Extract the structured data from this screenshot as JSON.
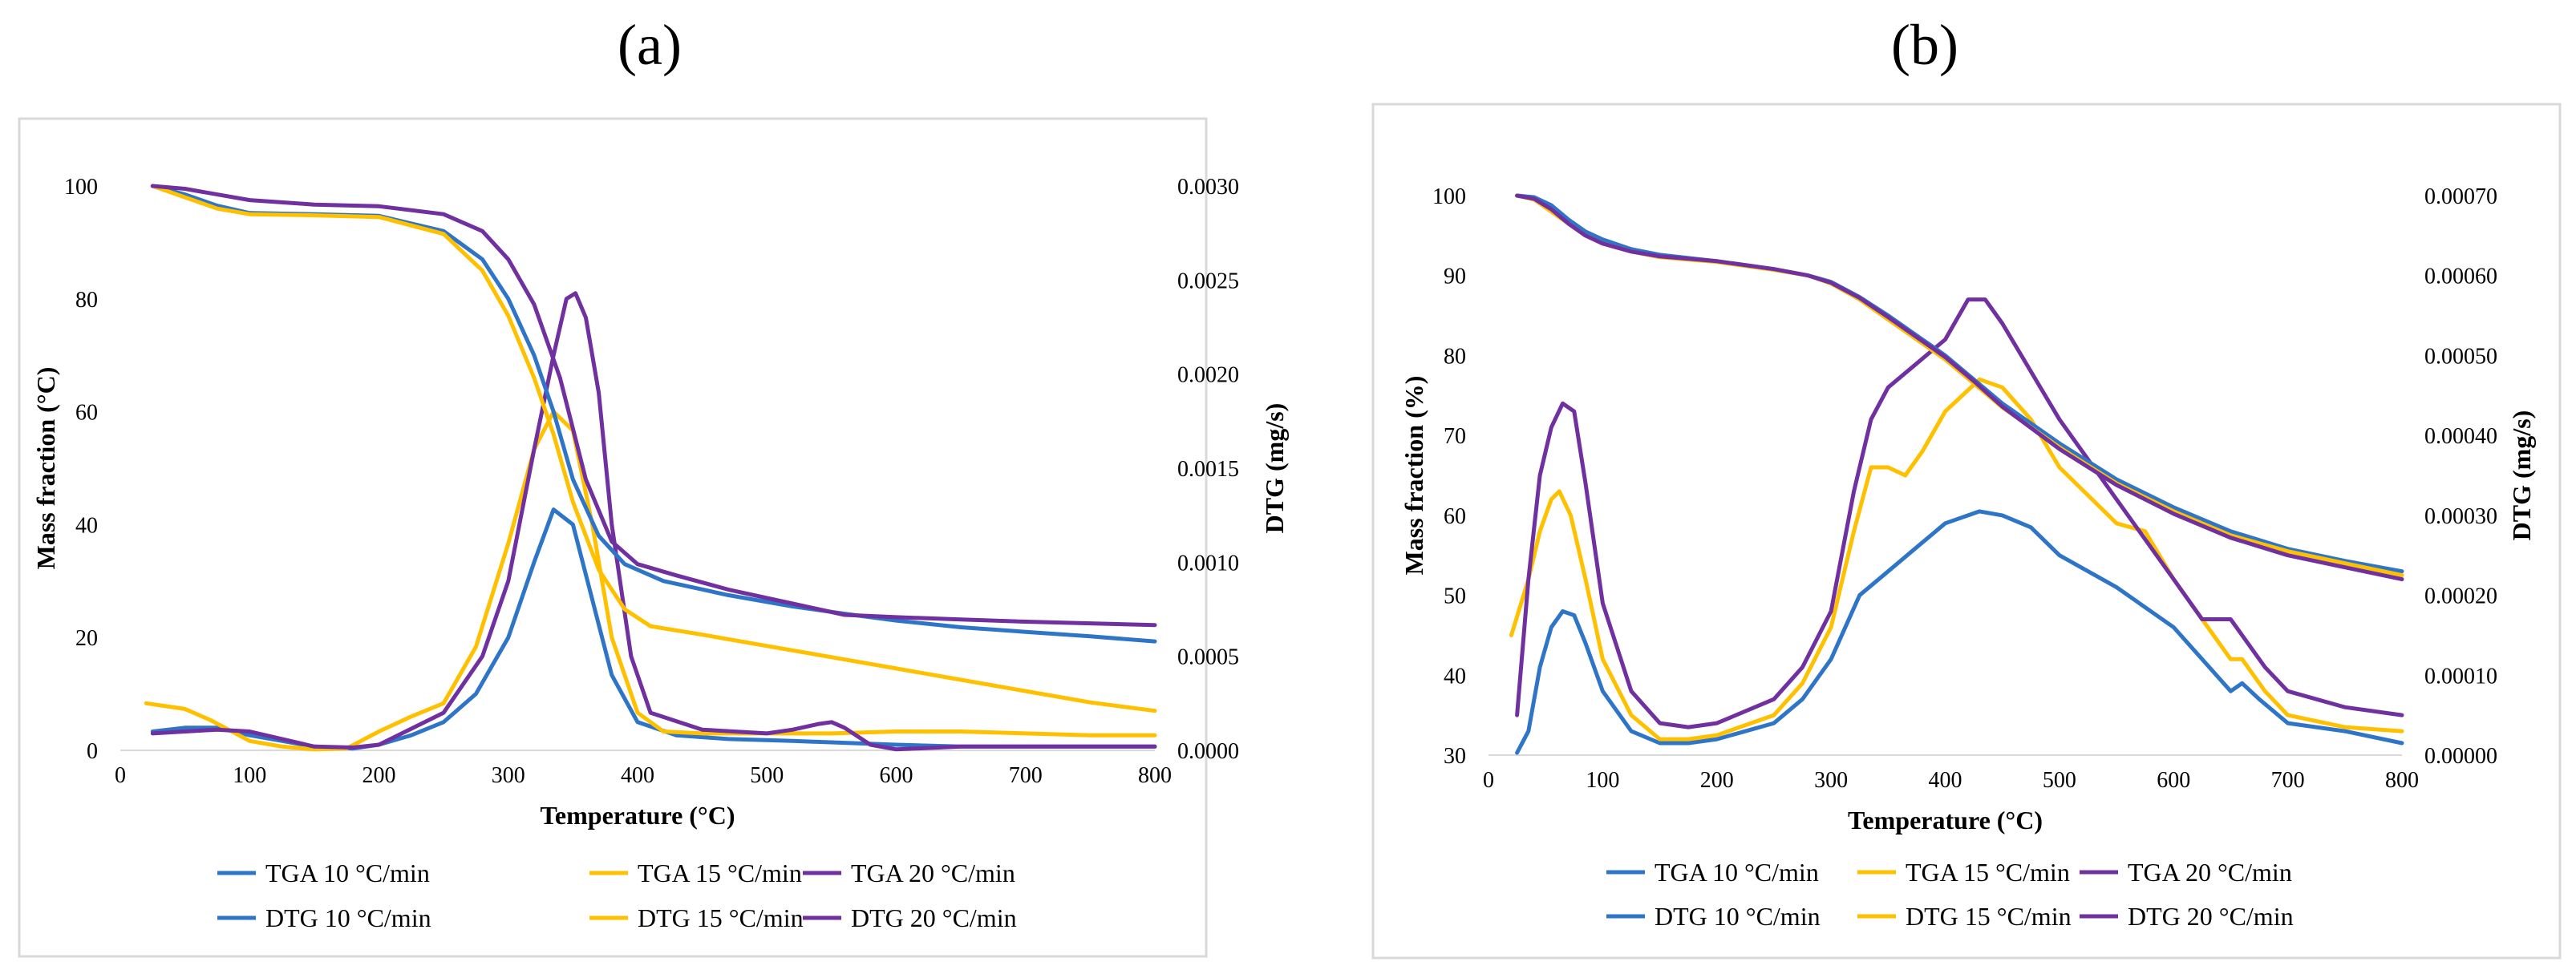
{
  "colors": {
    "rate10": "#2e75c8",
    "rate15": "#ffc000",
    "rate20": "#7030a0"
  },
  "chart_data": [
    {
      "panel_label": "(a)",
      "type": "line",
      "xlabel": "Temperature (°C)",
      "ylabel": "Mass fraction (°C)",
      "y2label": "DTG (mg/s)",
      "xlim": [
        0,
        800
      ],
      "ylim": [
        0,
        100
      ],
      "y2lim": [
        0,
        0.003
      ],
      "x_ticks": [
        "0",
        "100",
        "200",
        "300",
        "400",
        "500",
        "600",
        "700",
        "800"
      ],
      "y_ticks": [
        "0",
        "20",
        "40",
        "60",
        "80",
        "100"
      ],
      "y2_ticks": [
        "0.0000",
        "0.0005",
        "0.0010",
        "0.0015",
        "0.0020",
        "0.0025",
        "0.0030"
      ],
      "legend_position": "bottom",
      "series": [
        {
          "name": "TGA 10 °C/min",
          "axis": "left",
          "color_key": "rate10",
          "x": [
            25,
            50,
            75,
            100,
            150,
            200,
            250,
            280,
            300,
            320,
            335,
            350,
            370,
            390,
            420,
            470,
            520,
            560,
            600,
            650,
            700,
            750,
            800
          ],
          "y": [
            100,
            98.5,
            96.5,
            95.2,
            95,
            94.7,
            92,
            87,
            80,
            70,
            60,
            48,
            38,
            33,
            30,
            27.5,
            25.5,
            24.2,
            23,
            21.8,
            21,
            20.2,
            19.3
          ]
        },
        {
          "name": "TGA 15 °C/min",
          "axis": "left",
          "color_key": "rate15",
          "x": [
            25,
            50,
            75,
            100,
            150,
            200,
            250,
            280,
            300,
            320,
            335,
            350,
            370,
            390,
            410,
            450,
            500,
            550,
            600,
            650,
            700,
            750,
            800
          ],
          "y": [
            100,
            98,
            96,
            95,
            94.8,
            94.5,
            91.5,
            85,
            77,
            66,
            56,
            44,
            32,
            25,
            22,
            20.5,
            18.5,
            16.5,
            14.5,
            12.5,
            10.5,
            8.5,
            7
          ]
        },
        {
          "name": "TGA 20 °C/min",
          "axis": "left",
          "color_key": "rate20",
          "x": [
            25,
            50,
            75,
            100,
            150,
            200,
            250,
            280,
            300,
            320,
            340,
            360,
            380,
            400,
            430,
            470,
            520,
            560,
            600,
            650,
            700,
            750,
            800
          ],
          "y": [
            100,
            99.5,
            98.5,
            97.5,
            96.7,
            96.4,
            95,
            92,
            87,
            79,
            66,
            48,
            37,
            33,
            31,
            28.5,
            26,
            24,
            23.6,
            23.2,
            22.8,
            22.5,
            22.2
          ]
        },
        {
          "name": "DTG 10 °C/min",
          "axis": "right",
          "color_key": "rate10",
          "x": [
            25,
            50,
            75,
            100,
            150,
            180,
            200,
            225,
            250,
            275,
            300,
            320,
            335,
            350,
            365,
            380,
            400,
            430,
            470,
            520,
            560,
            600,
            650,
            700,
            750,
            800
          ],
          "y": [
            0.0001,
            0.00012,
            0.00012,
            8e-05,
            2e-05,
            1e-05,
            3e-05,
            8e-05,
            0.00015,
            0.0003,
            0.0006,
            0.001,
            0.00128,
            0.0012,
            0.0008,
            0.0004,
            0.00015,
            8e-05,
            6e-05,
            5e-05,
            4e-05,
            3e-05,
            2e-05,
            2e-05,
            2e-05,
            2e-05
          ]
        },
        {
          "name": "DTG 15 °C/min",
          "axis": "right",
          "color_key": "rate15",
          "x": [
            20,
            50,
            70,
            100,
            125,
            150,
            175,
            200,
            225,
            250,
            275,
            300,
            320,
            335,
            350,
            365,
            380,
            400,
            420,
            450,
            500,
            550,
            600,
            650,
            700,
            750,
            800
          ],
          "y": [
            0.00025,
            0.00022,
            0.00016,
            5e-05,
            2e-05,
            5e-06,
            1e-05,
            0.0001,
            0.00018,
            0.00025,
            0.00055,
            0.0011,
            0.0016,
            0.0018,
            0.0017,
            0.0012,
            0.0006,
            0.0002,
            0.0001,
            9e-05,
            9e-05,
            9e-05,
            0.0001,
            0.0001,
            9e-05,
            8e-05,
            8e-05
          ]
        },
        {
          "name": "DTG 20 °C/min",
          "axis": "right",
          "color_key": "rate20",
          "x": [
            25,
            50,
            75,
            100,
            150,
            180,
            200,
            250,
            280,
            300,
            320,
            335,
            345,
            352,
            360,
            370,
            380,
            395,
            410,
            450,
            500,
            520,
            540,
            550,
            560,
            580,
            600,
            650,
            700,
            750,
            800
          ],
          "y": [
            9e-05,
            0.0001,
            0.00011,
            0.0001,
            2e-05,
            1.5e-05,
            3e-05,
            0.0002,
            0.0005,
            0.0009,
            0.0016,
            0.0021,
            0.0024,
            0.00243,
            0.0023,
            0.0019,
            0.0012,
            0.0005,
            0.0002,
            0.00011,
            9e-05,
            0.00011,
            0.00014,
            0.00015,
            0.00012,
            3e-05,
            5e-06,
            2e-05,
            2e-05,
            2e-05,
            2e-05
          ]
        }
      ]
    },
    {
      "panel_label": "(b)",
      "type": "line",
      "xlabel": "Temperature (°C)",
      "ylabel": "Mass fraction (%)",
      "y2label": "DTG (mg/s)",
      "xlim": [
        0,
        800
      ],
      "ylim": [
        30,
        100
      ],
      "y2lim": [
        0,
        0.0007
      ],
      "x_ticks": [
        "0",
        "100",
        "200",
        "300",
        "400",
        "500",
        "600",
        "700",
        "800"
      ],
      "y_ticks": [
        "30",
        "40",
        "50",
        "60",
        "70",
        "80",
        "90",
        "100"
      ],
      "y2_ticks": [
        "0.00000",
        "0.00010",
        "0.00020",
        "0.00030",
        "0.00040",
        "0.00050",
        "0.00060",
        "0.00070"
      ],
      "legend_position": "bottom",
      "series": [
        {
          "name": "TGA 10 °C/min",
          "axis": "left",
          "color_key": "rate10",
          "x": [
            25,
            40,
            55,
            70,
            85,
            100,
            125,
            150,
            200,
            250,
            280,
            300,
            325,
            350,
            375,
            400,
            425,
            450,
            500,
            550,
            600,
            650,
            700,
            750,
            800
          ],
          "y": [
            100,
            99.8,
            98.8,
            97,
            95.5,
            94.5,
            93.3,
            92.6,
            91.8,
            90.8,
            90,
            89.2,
            87.3,
            85,
            82.5,
            80,
            77,
            74,
            69,
            64.5,
            61,
            58,
            55.8,
            54.3,
            53
          ]
        },
        {
          "name": "TGA 15 °C/min",
          "axis": "left",
          "color_key": "rate15",
          "x": [
            25,
            40,
            55,
            70,
            85,
            100,
            125,
            150,
            200,
            250,
            280,
            300,
            325,
            350,
            375,
            400,
            425,
            450,
            500,
            550,
            600,
            650,
            700,
            750,
            800
          ],
          "y": [
            100,
            99.5,
            98,
            96.5,
            95,
            94,
            93,
            92.3,
            91.7,
            90.7,
            90,
            89,
            87,
            84.5,
            82,
            79.5,
            76.5,
            73.5,
            68.5,
            64,
            60.5,
            57.5,
            55.5,
            54,
            52.5
          ]
        },
        {
          "name": "TGA 20 °C/min",
          "axis": "left",
          "color_key": "rate20",
          "x": [
            25,
            40,
            55,
            70,
            85,
            100,
            125,
            150,
            200,
            250,
            280,
            300,
            325,
            350,
            375,
            400,
            425,
            450,
            500,
            550,
            600,
            650,
            700,
            750,
            800
          ],
          "y": [
            100,
            99.6,
            98.3,
            96.5,
            95,
            94,
            93,
            92.4,
            91.8,
            90.8,
            90,
            89.1,
            87.2,
            84.8,
            82.3,
            79.8,
            76.8,
            73.6,
            68.3,
            63.8,
            60.2,
            57.2,
            55,
            53.5,
            52
          ]
        },
        {
          "name": "DTG 10 °C/min",
          "axis": "right",
          "color_key": "rate10",
          "x": [
            25,
            35,
            45,
            55,
            65,
            75,
            85,
            100,
            125,
            150,
            175,
            200,
            250,
            275,
            300,
            325,
            350,
            375,
            400,
            430,
            450,
            475,
            500,
            550,
            600,
            650,
            660,
            675,
            700,
            750,
            800
          ],
          "y": [
            3e-06,
            3e-05,
            0.00011,
            0.00016,
            0.00018,
            0.000175,
            0.00014,
            8e-05,
            3e-05,
            1.5e-05,
            1.5e-05,
            2e-05,
            4e-05,
            7e-05,
            0.00012,
            0.0002,
            0.00023,
            0.00026,
            0.00029,
            0.000305,
            0.0003,
            0.000285,
            0.00025,
            0.00021,
            0.00016,
            8e-05,
            9e-05,
            7e-05,
            4e-05,
            3e-05,
            1.5e-05
          ]
        },
        {
          "name": "DTG 15 °C/min",
          "axis": "right",
          "color_key": "rate15",
          "x": [
            20,
            35,
            45,
            55,
            62,
            72,
            85,
            100,
            125,
            150,
            175,
            200,
            250,
            275,
            300,
            320,
            335,
            350,
            365,
            380,
            400,
            430,
            450,
            475,
            500,
            550,
            575,
            600,
            625,
            650,
            660,
            680,
            700,
            750,
            800
          ],
          "y": [
            0.00015,
            0.00022,
            0.00028,
            0.00032,
            0.00033,
            0.0003,
            0.00022,
            0.00012,
            5e-05,
            2e-05,
            2e-05,
            2.5e-05,
            5e-05,
            9e-05,
            0.00016,
            0.00028,
            0.00036,
            0.00036,
            0.00035,
            0.00038,
            0.00043,
            0.00047,
            0.00046,
            0.00042,
            0.00036,
            0.00029,
            0.00028,
            0.00022,
            0.00017,
            0.00012,
            0.00012,
            8e-05,
            5e-05,
            3.5e-05,
            3e-05
          ]
        },
        {
          "name": "DTG 20 °C/min",
          "axis": "right",
          "color_key": "rate20",
          "x": [
            25,
            35,
            45,
            55,
            65,
            75,
            85,
            100,
            125,
            150,
            175,
            200,
            250,
            275,
            300,
            320,
            335,
            350,
            375,
            400,
            420,
            435,
            450,
            475,
            500,
            550,
            600,
            625,
            650,
            660,
            680,
            700,
            750,
            800
          ],
          "y": [
            5e-05,
            0.00022,
            0.00035,
            0.00041,
            0.00044,
            0.00043,
            0.00034,
            0.00019,
            8e-05,
            4e-05,
            3.5e-05,
            4e-05,
            7e-05,
            0.00011,
            0.00018,
            0.00033,
            0.00042,
            0.00046,
            0.00049,
            0.00052,
            0.00057,
            0.00057,
            0.00054,
            0.00048,
            0.00042,
            0.00032,
            0.00022,
            0.00017,
            0.00017,
            0.00015,
            0.00011,
            8e-05,
            6e-05,
            5e-05
          ]
        }
      ]
    }
  ]
}
